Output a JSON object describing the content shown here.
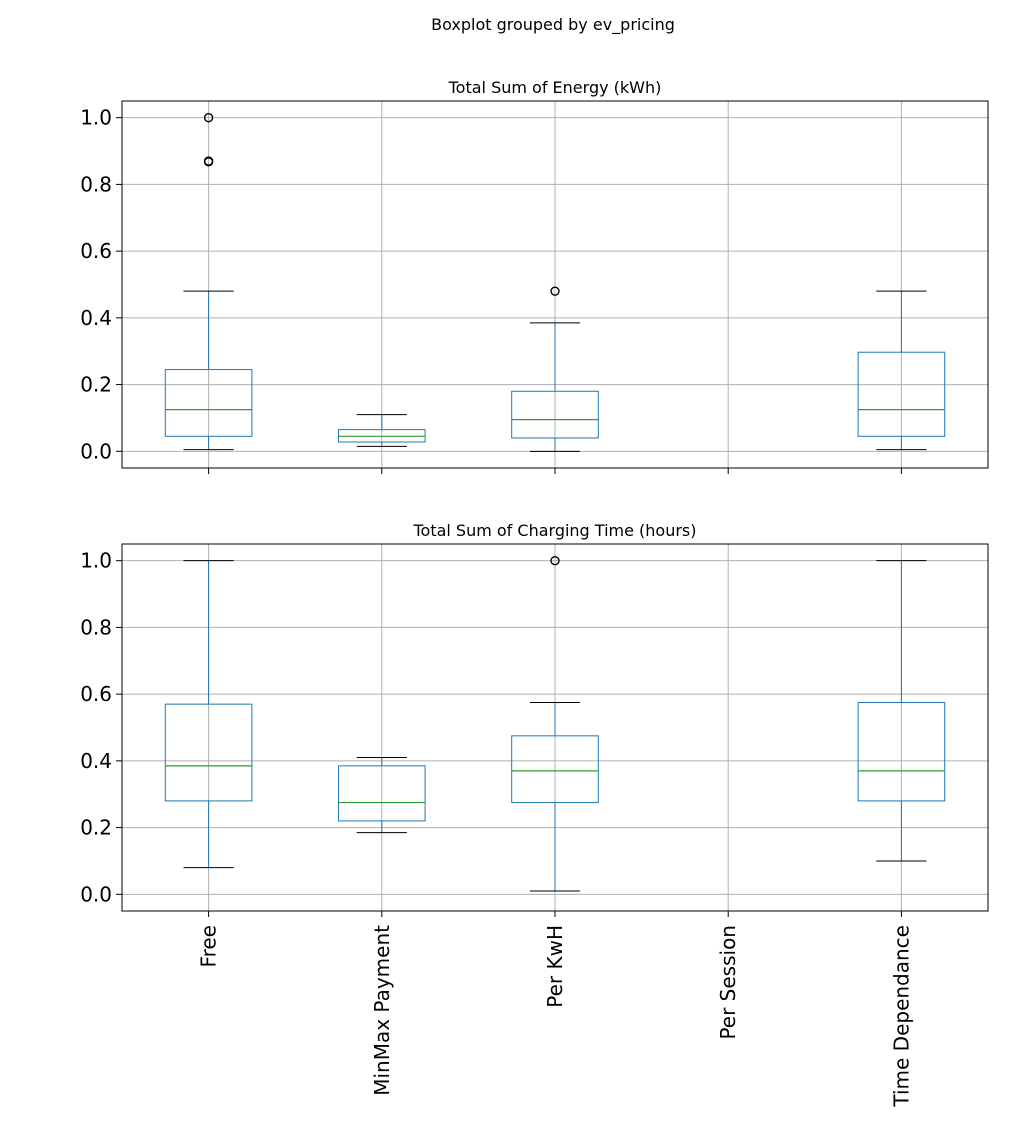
{
  "figure": {
    "suptitle": "Boxplot grouped by ev_pricing"
  },
  "colors": {
    "box": "#1f77b4",
    "median": "#2ca02c",
    "grid": "#b0b0b0",
    "outlier_edge": "#000000"
  },
  "chart_data": [
    {
      "type": "box",
      "title": "Total Sum of Energy (kWh)",
      "xlabel": "",
      "ylabel": "",
      "ylim": [
        -0.05,
        1.05
      ],
      "yticks": [
        "0.0",
        "0.2",
        "0.4",
        "0.6",
        "0.8",
        "1.0"
      ],
      "grid": true,
      "categories": [
        "Free",
        "MinMax Payment",
        "Per KwH",
        "Per Session",
        "Time Dependance"
      ],
      "boxes": [
        {
          "category": "Free",
          "whisker_low": 0.005,
          "q1": 0.045,
          "median": 0.125,
          "q3": 0.245,
          "whisker_high": 0.48,
          "outliers": [
            0.87,
            0.87,
            1.0
          ]
        },
        {
          "category": "MinMax Payment",
          "whisker_low": 0.015,
          "q1": 0.028,
          "median": 0.045,
          "q3": 0.065,
          "whisker_high": 0.11,
          "outliers": []
        },
        {
          "category": "Per KwH",
          "whisker_low": 0.0,
          "q1": 0.04,
          "median": 0.095,
          "q3": 0.18,
          "whisker_high": 0.385,
          "outliers": [
            0.48
          ]
        },
        {
          "category": "Per Session",
          "empty": true
        },
        {
          "category": "Time Dependance",
          "whisker_low": 0.005,
          "q1": 0.045,
          "median": 0.125,
          "q3": 0.297,
          "whisker_high": 0.48,
          "outliers": []
        }
      ]
    },
    {
      "type": "box",
      "title": "Total Sum of Charging Time (hours)",
      "xlabel": "",
      "ylabel": "",
      "ylim": [
        -0.05,
        1.05
      ],
      "yticks": [
        "0.0",
        "0.2",
        "0.4",
        "0.6",
        "0.8",
        "1.0"
      ],
      "grid": true,
      "categories": [
        "Free",
        "MinMax Payment",
        "Per KwH",
        "Per Session",
        "Time Dependance"
      ],
      "boxes": [
        {
          "category": "Free",
          "whisker_low": 0.08,
          "q1": 0.28,
          "median": 0.385,
          "q3": 0.57,
          "whisker_high": 1.0,
          "outliers": []
        },
        {
          "category": "MinMax Payment",
          "whisker_low": 0.185,
          "q1": 0.22,
          "median": 0.275,
          "q3": 0.385,
          "whisker_high": 0.41,
          "outliers": []
        },
        {
          "category": "Per KwH",
          "whisker_low": 0.01,
          "q1": 0.275,
          "median": 0.37,
          "q3": 0.475,
          "whisker_high": 0.575,
          "outliers": [
            1.0
          ]
        },
        {
          "category": "Per Session",
          "empty": true
        },
        {
          "category": "Time Dependance",
          "whisker_low": 0.1,
          "q1": 0.28,
          "median": 0.37,
          "q3": 0.575,
          "whisker_high": 1.0,
          "outliers": []
        }
      ]
    }
  ]
}
